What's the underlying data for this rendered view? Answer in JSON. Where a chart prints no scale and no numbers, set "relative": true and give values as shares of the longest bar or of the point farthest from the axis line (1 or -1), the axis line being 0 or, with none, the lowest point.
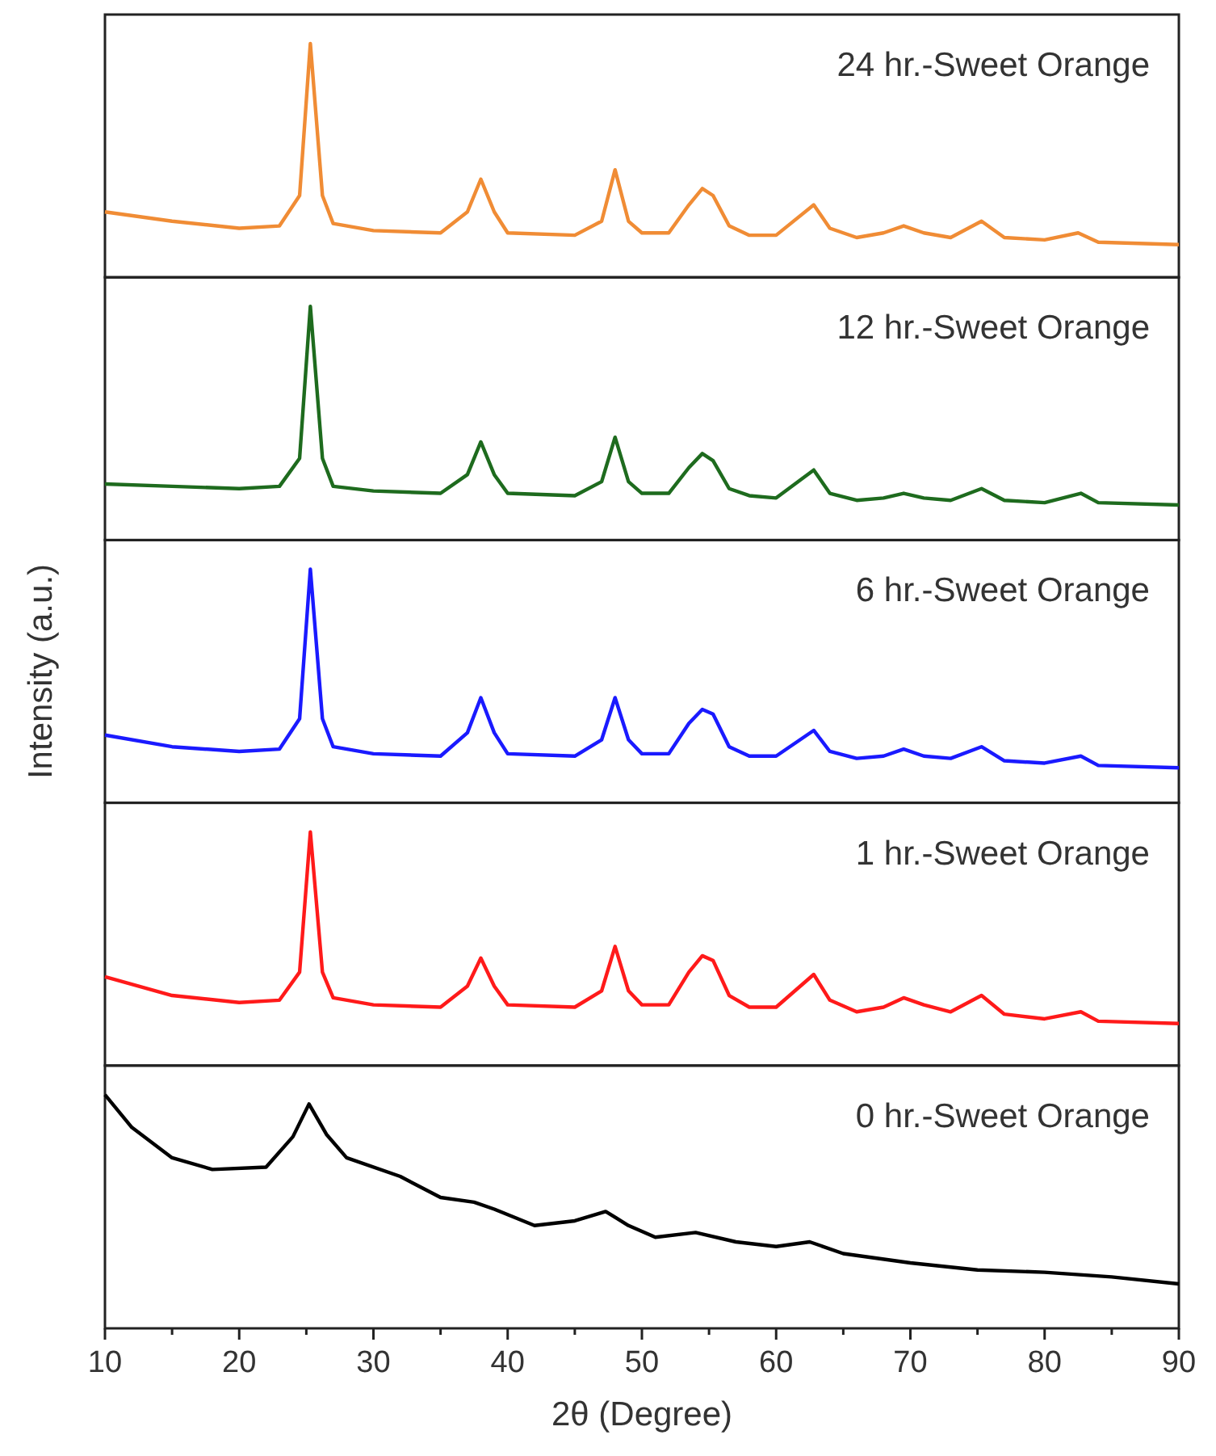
{
  "chart_data": [
    {
      "type": "line",
      "relative": true,
      "xlim": [
        10,
        90
      ],
      "color": "#f08c35",
      "annotations": [
        "24 hr.-Sweet Orange"
      ],
      "x": [
        10,
        15,
        20,
        23,
        24.5,
        25.3,
        26.2,
        27,
        30,
        35,
        37,
        38,
        39,
        40,
        45,
        47,
        48,
        49,
        50,
        52,
        53.5,
        54.5,
        55.3,
        56.5,
        58,
        60,
        62.8,
        64,
        66,
        68,
        69.5,
        71,
        73,
        75.3,
        77,
        80,
        82.5,
        84,
        90
      ],
      "values": [
        0.28,
        0.24,
        0.21,
        0.22,
        0.35,
        1,
        0.35,
        0.23,
        0.2,
        0.19,
        0.28,
        0.42,
        0.28,
        0.19,
        0.18,
        0.24,
        0.46,
        0.24,
        0.19,
        0.19,
        0.31,
        0.38,
        0.35,
        0.22,
        0.18,
        0.18,
        0.31,
        0.21,
        0.17,
        0.19,
        0.22,
        0.19,
        0.17,
        0.24,
        0.17,
        0.16,
        0.19,
        0.15,
        0.14
      ]
    },
    {
      "type": "line",
      "relative": true,
      "xlim": [
        10,
        90
      ],
      "color": "#1e6b1e",
      "annotations": [
        "12 hr.-Sweet Orange"
      ],
      "x": [
        10,
        15,
        20,
        23,
        24.5,
        25.3,
        26.2,
        27,
        30,
        35,
        37,
        38,
        39,
        40,
        45,
        47,
        48,
        49,
        50,
        52,
        53.5,
        54.5,
        55.3,
        56.5,
        58,
        60,
        62.8,
        64,
        66,
        68,
        69.5,
        71,
        73,
        75.3,
        77,
        80,
        82.7,
        84,
        90
      ],
      "values": [
        0.24,
        0.23,
        0.22,
        0.23,
        0.35,
        1,
        0.35,
        0.23,
        0.21,
        0.2,
        0.28,
        0.42,
        0.28,
        0.2,
        0.19,
        0.25,
        0.44,
        0.25,
        0.2,
        0.2,
        0.31,
        0.37,
        0.34,
        0.22,
        0.19,
        0.18,
        0.3,
        0.2,
        0.17,
        0.18,
        0.2,
        0.18,
        0.17,
        0.22,
        0.17,
        0.16,
        0.2,
        0.16,
        0.15
      ]
    },
    {
      "type": "line",
      "relative": true,
      "xlim": [
        10,
        90
      ],
      "color": "#1a1aff",
      "annotations": [
        "6 hr.-Sweet Orange"
      ],
      "ylabel": "Intensity (a.u.)",
      "x": [
        10,
        15,
        20,
        23,
        24.5,
        25.3,
        26.2,
        27,
        30,
        35,
        37,
        38,
        39,
        40,
        45,
        47,
        48,
        49,
        50,
        52,
        53.5,
        54.5,
        55.3,
        56.5,
        58,
        60,
        62.8,
        64,
        66,
        68,
        69.5,
        71,
        73,
        75.3,
        77,
        80,
        82.7,
        84,
        90
      ],
      "values": [
        0.29,
        0.24,
        0.22,
        0.23,
        0.36,
        1,
        0.36,
        0.24,
        0.21,
        0.2,
        0.3,
        0.45,
        0.3,
        0.21,
        0.2,
        0.27,
        0.45,
        0.27,
        0.21,
        0.21,
        0.34,
        0.4,
        0.38,
        0.24,
        0.2,
        0.2,
        0.31,
        0.22,
        0.19,
        0.2,
        0.23,
        0.2,
        0.19,
        0.24,
        0.18,
        0.17,
        0.2,
        0.16,
        0.15
      ]
    },
    {
      "type": "line",
      "relative": true,
      "xlim": [
        10,
        90
      ],
      "color": "#ff1a1a",
      "annotations": [
        "1 hr.-Sweet Orange"
      ],
      "x": [
        10,
        15,
        20,
        23,
        24.5,
        25.3,
        26.2,
        27,
        30,
        35,
        37,
        38,
        39,
        40,
        45,
        47,
        48,
        49,
        50,
        52,
        53.5,
        54.5,
        55.3,
        56.5,
        58,
        60,
        62.8,
        64,
        66,
        68,
        69.5,
        71,
        73,
        75.3,
        77,
        80,
        82.7,
        84,
        90
      ],
      "values": [
        0.38,
        0.3,
        0.27,
        0.28,
        0.4,
        1,
        0.4,
        0.29,
        0.26,
        0.25,
        0.34,
        0.46,
        0.34,
        0.26,
        0.25,
        0.32,
        0.51,
        0.32,
        0.26,
        0.26,
        0.4,
        0.47,
        0.45,
        0.3,
        0.25,
        0.25,
        0.39,
        0.28,
        0.23,
        0.25,
        0.29,
        0.26,
        0.23,
        0.3,
        0.22,
        0.2,
        0.23,
        0.19,
        0.18
      ]
    },
    {
      "type": "line",
      "relative": true,
      "xlim": [
        10,
        90
      ],
      "color": "#000000",
      "annotations": [
        "0 hr.-Sweet Orange"
      ],
      "xlabel": "2θ (Degree)",
      "xticks": [
        10,
        {
          "value": 15,
          "label": null
        },
        20,
        {
          "value": 25,
          "label": null
        },
        30,
        {
          "value": 35,
          "label": null
        },
        40,
        {
          "value": 45,
          "label": null
        },
        50,
        {
          "value": 55,
          "label": null
        },
        60,
        {
          "value": 65,
          "label": null
        },
        70,
        {
          "value": 75,
          "label": null
        },
        80,
        {
          "value": 85,
          "label": null
        },
        90
      ],
      "x": [
        10,
        12,
        15,
        18,
        22,
        24,
        25.2,
        26.5,
        28,
        32,
        35,
        37.5,
        39,
        42,
        45,
        47.3,
        49,
        51,
        54,
        57,
        60,
        62.5,
        65,
        70,
        75,
        80,
        85,
        90
      ],
      "values": [
        1,
        0.86,
        0.73,
        0.68,
        0.69,
        0.82,
        0.96,
        0.83,
        0.73,
        0.65,
        0.56,
        0.54,
        0.51,
        0.44,
        0.46,
        0.5,
        0.44,
        0.39,
        0.41,
        0.37,
        0.35,
        0.37,
        0.32,
        0.28,
        0.25,
        0.24,
        0.22,
        0.19
      ]
    }
  ]
}
